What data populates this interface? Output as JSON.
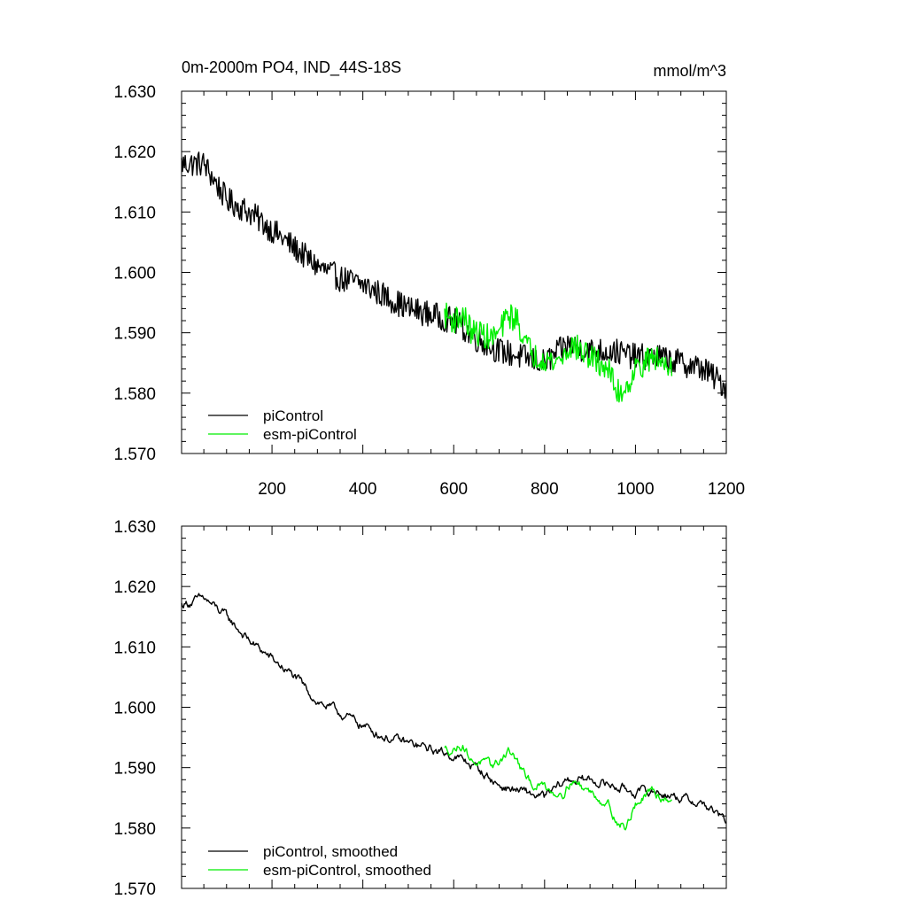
{
  "chart_data": [
    {
      "type": "line",
      "title": "0m-2000m PO4, IND_44S-18S",
      "units": "mmol/m^3",
      "xlabel": "",
      "ylabel": "",
      "xlim": [
        1,
        1200
      ],
      "ylim": [
        1.57,
        1.63
      ],
      "xticks": [
        "200",
        "400",
        "600",
        "800",
        "1000",
        "1200"
      ],
      "yticks": [
        "1.630",
        "1.620",
        "1.610",
        "1.600",
        "1.590",
        "1.580",
        "1.570"
      ],
      "grid": false,
      "legend_position": "bottom-left",
      "series": [
        {
          "name": "piControl",
          "color": "#000000",
          "x": [
            1,
            50,
            100,
            150,
            200,
            250,
            300,
            350,
            400,
            450,
            500,
            550,
            600,
            650,
            700,
            750,
            800,
            850,
            900,
            950,
            1000,
            1050,
            1100,
            1150,
            1200
          ],
          "values": [
            1.618,
            1.618,
            1.612,
            1.61,
            1.607,
            1.604,
            1.601,
            1.599,
            1.598,
            1.596,
            1.594,
            1.593,
            1.592,
            1.589,
            1.587,
            1.586,
            1.585,
            1.588,
            1.587,
            1.587,
            1.586,
            1.586,
            1.585,
            1.584,
            1.581
          ]
        },
        {
          "name": "esm-piControl",
          "color": "#00ee00",
          "x": [
            580,
            600,
            620,
            640,
            660,
            680,
            700,
            720,
            740,
            760,
            780,
            800,
            820,
            840,
            860,
            880,
            900,
            920,
            940,
            960,
            980,
            1000,
            1020,
            1040,
            1060,
            1080
          ],
          "values": [
            1.593,
            1.592,
            1.593,
            1.59,
            1.59,
            1.589,
            1.59,
            1.593,
            1.592,
            1.588,
            1.586,
            1.586,
            1.585,
            1.586,
            1.588,
            1.587,
            1.586,
            1.585,
            1.584,
            1.58,
            1.581,
            1.584,
            1.585,
            1.586,
            1.585,
            1.585
          ]
        }
      ]
    },
    {
      "type": "line",
      "title": "",
      "xlabel": "",
      "ylabel": "",
      "xlim": [
        1,
        1200
      ],
      "ylim": [
        1.57,
        1.63
      ],
      "yticks": [
        "1.630",
        "1.620",
        "1.610",
        "1.600",
        "1.590",
        "1.580",
        "1.570"
      ],
      "grid": false,
      "legend_position": "bottom-left",
      "series": [
        {
          "name": "piControl, smoothed",
          "color": "#000000",
          "x": [
            1,
            50,
            100,
            150,
            200,
            250,
            300,
            350,
            400,
            450,
            500,
            550,
            600,
            650,
            700,
            750,
            800,
            850,
            900,
            950,
            1000,
            1050,
            1100,
            1150,
            1200
          ],
          "values": [
            1.617,
            1.618,
            1.615,
            1.611,
            1.608,
            1.605,
            1.601,
            1.599,
            1.597,
            1.595,
            1.594,
            1.593,
            1.592,
            1.59,
            1.587,
            1.586,
            1.585,
            1.588,
            1.588,
            1.587,
            1.586,
            1.586,
            1.585,
            1.584,
            1.581
          ]
        },
        {
          "name": "esm-piControl, smoothed",
          "color": "#00ee00",
          "x": [
            580,
            600,
            620,
            640,
            660,
            680,
            700,
            720,
            740,
            760,
            780,
            800,
            820,
            840,
            860,
            880,
            900,
            920,
            940,
            960,
            980,
            1000,
            1020,
            1040,
            1060,
            1080
          ],
          "values": [
            1.593,
            1.593,
            1.594,
            1.591,
            1.591,
            1.59,
            1.591,
            1.593,
            1.591,
            1.588,
            1.587,
            1.587,
            1.586,
            1.586,
            1.588,
            1.587,
            1.586,
            1.585,
            1.584,
            1.581,
            1.58,
            1.584,
            1.585,
            1.586,
            1.585,
            1.585
          ]
        }
      ]
    }
  ]
}
